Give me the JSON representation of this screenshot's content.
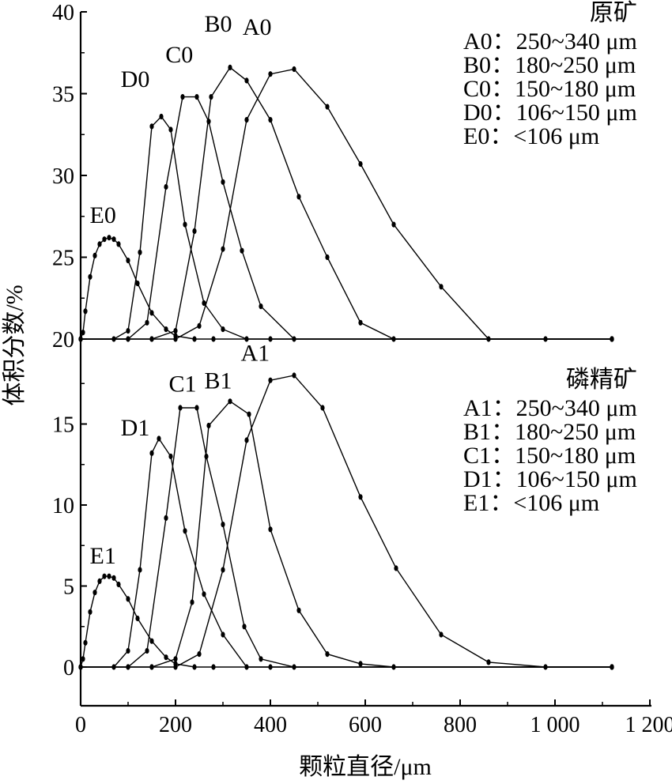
{
  "chart_data": {
    "type": "line",
    "xlabel": "颗粒直径/μm",
    "ylabel": "体积分数/%",
    "x_ticks": [
      "0",
      "200",
      "400",
      "600",
      "800",
      "1 000",
      "1 200"
    ],
    "xlim": [
      0,
      1200
    ],
    "panels": [
      {
        "name": "top",
        "legend_title": "原矿",
        "ylim": [
          20,
          40
        ],
        "y_ticks": [
          "20",
          "25",
          "30",
          "35",
          "40"
        ],
        "series": [
          {
            "name": "A0",
            "legend": "A0：250~340 μm",
            "x": [
              0,
              150,
              200,
              250,
              300,
              350,
              400,
              450,
              520,
              590,
              660,
              760,
              860,
              980,
              1120
            ],
            "y": [
              20,
              20,
              20,
              20.8,
              25.5,
              33.4,
              36.2,
              36.5,
              34.2,
              30.7,
              27.0,
              23.2,
              20,
              20,
              20
            ]
          },
          {
            "name": "B0",
            "legend": "B0：180~250 μm",
            "x": [
              0,
              100,
              150,
              200,
              240,
              275,
              315,
              350,
              400,
              460,
              520,
              590,
              660,
              1120
            ],
            "y": [
              20,
              20,
              20,
              20.5,
              26.6,
              34.8,
              36.6,
              35.8,
              33.4,
              28.7,
              25.0,
              21.0,
              20,
              20
            ]
          },
          {
            "name": "C0",
            "legend": "C0：150~180 μm",
            "x": [
              0,
              100,
              140,
              180,
              215,
              245,
              270,
              300,
              340,
              380,
              450,
              1120
            ],
            "y": [
              20,
              20,
              21.0,
              29.3,
              34.8,
              34.8,
              33.3,
              29.6,
              25.4,
              22.0,
              20,
              20
            ]
          },
          {
            "name": "D0",
            "legend": "D0：106~150 μm",
            "x": [
              0,
              70,
              100,
              125,
              150,
              170,
              190,
              220,
              260,
              300,
              350,
              400,
              1120
            ],
            "y": [
              20,
              20,
              20.5,
              25.3,
              33.0,
              33.6,
              32.8,
              27.0,
              22.2,
              20.6,
              20,
              20,
              20
            ]
          },
          {
            "name": "E0",
            "legend": "E0：<106 μm",
            "x": [
              0,
              5,
              10,
              20,
              30,
              40,
              50,
              60,
              70,
              80,
              100,
              120,
              150,
              180,
              200,
              240,
              280,
              1120
            ],
            "y": [
              20,
              20.4,
              21.7,
              23.8,
              25.1,
              25.8,
              26.1,
              26.2,
              26.1,
              25.8,
              24.8,
              23.4,
              21.6,
              20.6,
              20.2,
              20,
              20,
              20
            ]
          }
        ],
        "labels": [
          {
            "text": "A0",
            "x": 372,
            "y": 38.6
          },
          {
            "text": "B0",
            "x": 290,
            "y": 38.8
          },
          {
            "text": "C0",
            "x": 208,
            "y": 36.9
          },
          {
            "text": "D0",
            "x": 115,
            "y": 35.4
          },
          {
            "text": "E0",
            "x": 47,
            "y": 27.1
          }
        ]
      },
      {
        "name": "bottom",
        "legend_title": "磷精矿",
        "ylim": [
          -2.5,
          20
        ],
        "y_ticks": [
          "0",
          "5",
          "10",
          "15"
        ],
        "series": [
          {
            "name": "A1",
            "legend": "A1：250~340 μm",
            "x": [
              0,
              150,
              200,
              250,
              300,
              350,
              400,
              450,
              510,
              590,
              665,
              760,
              860,
              980,
              1120
            ],
            "y": [
              0,
              0,
              0,
              0.8,
              6.0,
              14.0,
              17.7,
              18.0,
              16.0,
              10.5,
              6.1,
              2.0,
              0.3,
              0,
              0
            ]
          },
          {
            "name": "B1",
            "legend": "B1：180~250 μm",
            "x": [
              0,
              100,
              150,
              200,
              235,
              270,
              315,
              355,
              400,
              460,
              520,
              590,
              660,
              1120
            ],
            "y": [
              0,
              0,
              0,
              0.5,
              4.0,
              14.9,
              16.4,
              15.6,
              8.5,
              3.5,
              0.8,
              0.2,
              0,
              0
            ]
          },
          {
            "name": "C1",
            "legend": "C1：150~180 μm",
            "x": [
              0,
              100,
              140,
              180,
              210,
              245,
              265,
              300,
              345,
              380,
              450,
              1120
            ],
            "y": [
              0,
              0,
              1.0,
              9.2,
              16.0,
              16.0,
              13.0,
              8.8,
              2.5,
              0.5,
              0,
              0
            ]
          },
          {
            "name": "D1",
            "legend": "D1：106~150 μm",
            "x": [
              0,
              70,
              100,
              125,
              150,
              165,
              190,
              220,
              260,
              300,
              350,
              400,
              1120
            ],
            "y": [
              0,
              0,
              1.0,
              6.0,
              13.2,
              14.1,
              13.0,
              8.4,
              4.5,
              2.0,
              0,
              0,
              0
            ]
          },
          {
            "name": "E1",
            "legend": "E1：<106 μm",
            "x": [
              0,
              5,
              10,
              20,
              30,
              40,
              50,
              60,
              70,
              80,
              100,
              120,
              150,
              180,
              200,
              240,
              280,
              1120
            ],
            "y": [
              0,
              0.5,
              1.5,
              3.4,
              4.6,
              5.3,
              5.6,
              5.6,
              5.5,
              5.1,
              4.2,
              3.0,
              1.6,
              0.6,
              0.2,
              0,
              0,
              0
            ]
          }
        ],
        "labels": [
          {
            "text": "A1",
            "x": 368,
            "y": 18.9
          },
          {
            "text": "B1",
            "x": 290,
            "y": 17.2
          },
          {
            "text": "C1",
            "x": 215,
            "y": 17.0
          },
          {
            "text": "D1",
            "x": 115,
            "y": 14.3
          },
          {
            "text": "E1",
            "x": 47,
            "y": 6.4
          }
        ]
      }
    ]
  }
}
